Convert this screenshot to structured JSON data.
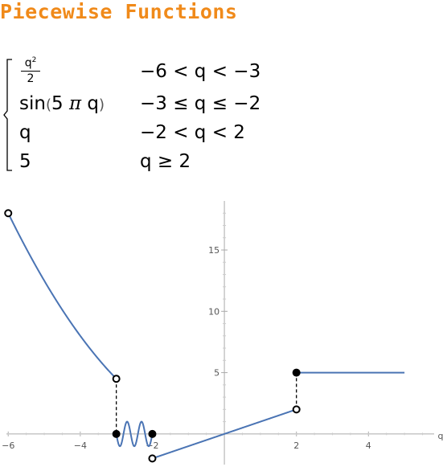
{
  "title": "Piecewise Functions",
  "piecewise": {
    "rows": [
      {
        "expr": "q²/2",
        "num": "q",
        "num_exp": "2",
        "den": "2",
        "cond": "−6 < q < −3"
      },
      {
        "expr_pre": "sin",
        "expr_paren_open": "(",
        "expr_body_a": "5 ",
        "expr_pi": "π",
        "expr_body_b": " q",
        "expr_paren_close": ")",
        "cond": "−3 ≤ q ≤ −2"
      },
      {
        "expr": "q",
        "cond": "−2 < q < 2"
      },
      {
        "expr": "5",
        "cond": "q ≥ 2"
      }
    ]
  },
  "chart_data": {
    "type": "line",
    "title": "",
    "xlabel": "q",
    "ylabel": "",
    "xlim": [
      -6.05,
      5.6
    ],
    "ylim": [
      -2.5,
      19
    ],
    "x_ticks": [
      -6,
      -4,
      -2,
      2,
      4
    ],
    "x_tick_labels": [
      "−6",
      "−4",
      "−2",
      "2",
      "4"
    ],
    "y_ticks": [
      5,
      10,
      15
    ],
    "y_tick_labels": [
      "5",
      "10",
      "15"
    ],
    "grid": false,
    "series": [
      {
        "formula": "q^2/2",
        "domain": [
          -6,
          -3
        ]
      },
      {
        "formula": "sin(5*pi*q)",
        "domain": [
          -3,
          -2
        ]
      },
      {
        "formula": "q",
        "domain": [
          -2,
          2
        ]
      },
      {
        "formula": "5",
        "domain": [
          2,
          5
        ]
      }
    ],
    "open_points": [
      [
        -6,
        18
      ],
      [
        -3,
        4.5
      ],
      [
        -2,
        -2
      ],
      [
        2,
        2
      ]
    ],
    "closed_points": [
      [
        -3,
        0
      ],
      [
        -2,
        0
      ],
      [
        2,
        5
      ]
    ],
    "jump_lines": [
      {
        "x": -3,
        "from": 4.5,
        "to": 0
      },
      {
        "x": 2,
        "from": 2,
        "to": 5
      }
    ],
    "colors": {
      "curve": "#4a74b4",
      "points": "#000000",
      "jump": "#000000"
    }
  }
}
